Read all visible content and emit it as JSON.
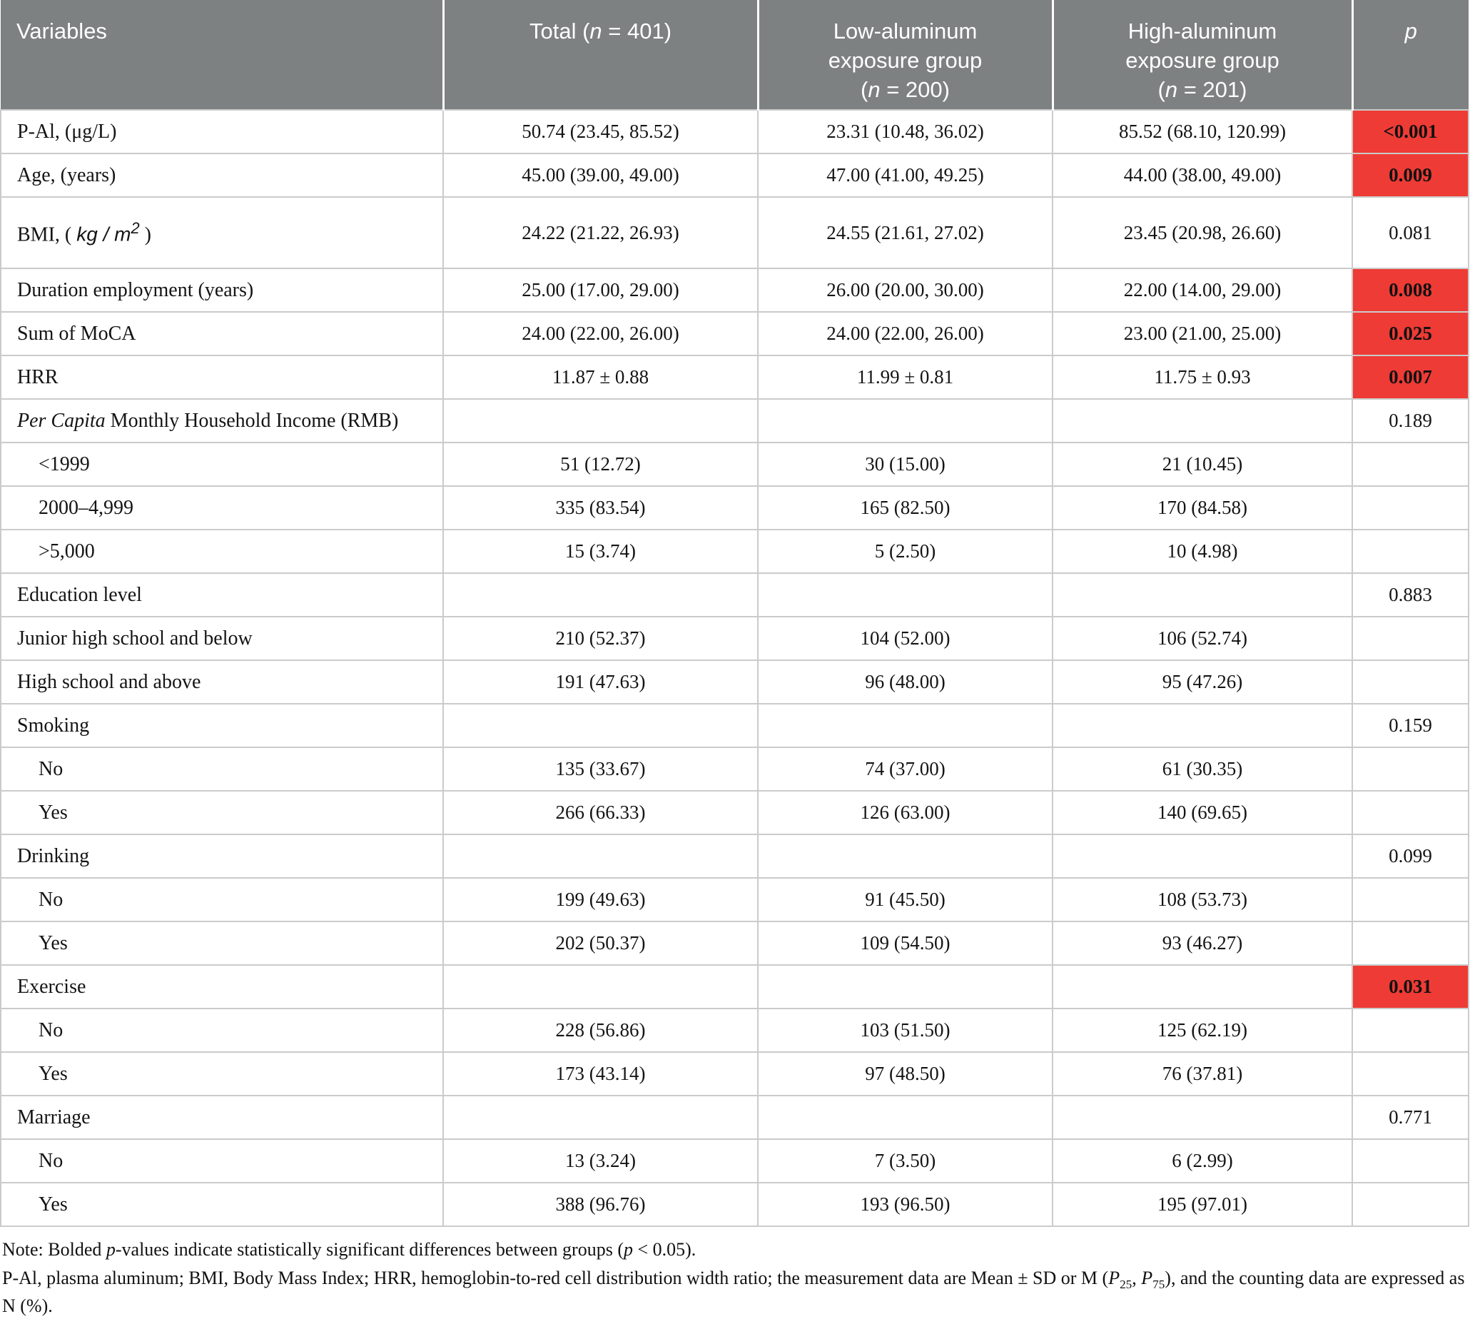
{
  "colors": {
    "header_bg": "#7e8181",
    "significant_bg": "#ee3b35",
    "grid_border": "#cbcbcb",
    "header_text": "#ffffff",
    "body_text": "#141414"
  },
  "table": {
    "header": {
      "variables": [
        {
          "t": "Variables"
        }
      ],
      "total": [
        {
          "t": "Total ("
        },
        {
          "t": "n",
          "i": true
        },
        {
          "t": " = 401)"
        }
      ],
      "low": [
        {
          "t": "Low-aluminum\nexposure group\n("
        },
        {
          "t": "n",
          "i": true
        },
        {
          "t": " = 200)"
        }
      ],
      "high": [
        {
          "t": "High-aluminum\nexposure group\n("
        },
        {
          "t": "n",
          "i": true
        },
        {
          "t": " = 201)"
        }
      ],
      "p": [
        {
          "t": "p",
          "i": true
        }
      ]
    },
    "rows": [
      {
        "label": "P-Al, (μg/L)",
        "indent": false,
        "cells": [
          "50.74 (23.45, 85.52)",
          "23.31 (10.48, 36.02)",
          "85.52 (68.10, 120.99)"
        ],
        "p": "<0.001",
        "sig": true
      },
      {
        "label": "Age, (years)",
        "indent": false,
        "cells": [
          "45.00 (39.00, 49.00)",
          "47.00 (41.00, 49.25)",
          "44.00 (38.00, 49.00)"
        ],
        "p": "0.009",
        "sig": true
      },
      {
        "label": [
          {
            "t": "BMI, ( "
          },
          {
            "t": "kg / m",
            "f": true,
            "i": true
          },
          {
            "t": "2",
            "f": true,
            "i": true,
            "sup": true
          },
          {
            "t": " )"
          }
        ],
        "indent": false,
        "tall": true,
        "cells": [
          "24.22 (21.22, 26.93)",
          "24.55 (21.61, 27.02)",
          "23.45 (20.98, 26.60)"
        ],
        "p": "0.081",
        "sig": false
      },
      {
        "label": "Duration employment (years)",
        "indent": false,
        "cells": [
          "25.00 (17.00, 29.00)",
          "26.00 (20.00, 30.00)",
          "22.00 (14.00, 29.00)"
        ],
        "p": "0.008",
        "sig": true
      },
      {
        "label": "Sum of MoCA",
        "indent": false,
        "cells": [
          "24.00 (22.00, 26.00)",
          "24.00 (22.00, 26.00)",
          "23.00 (21.00, 25.00)"
        ],
        "p": "0.025",
        "sig": true
      },
      {
        "label": "HRR",
        "indent": false,
        "cells": [
          "11.87 ± 0.88",
          "11.99 ± 0.81",
          "11.75 ± 0.93"
        ],
        "p": "0.007",
        "sig": true
      },
      {
        "label": [
          {
            "t": "Per Capita",
            "i": true
          },
          {
            "t": " Monthly Household Income (RMB)"
          }
        ],
        "indent": false,
        "cells": [
          "",
          "",
          ""
        ],
        "p": "0.189",
        "sig": false
      },
      {
        "label": "<1999",
        "indent": true,
        "cells": [
          "51 (12.72)",
          "30 (15.00)",
          "21 (10.45)"
        ],
        "p": "",
        "sig": false
      },
      {
        "label": "2000–4,999",
        "indent": true,
        "cells": [
          "335 (83.54)",
          "165 (82.50)",
          "170 (84.58)"
        ],
        "p": "",
        "sig": false
      },
      {
        "label": ">5,000",
        "indent": true,
        "cells": [
          "15 (3.74)",
          "5 (2.50)",
          "10 (4.98)"
        ],
        "p": "",
        "sig": false
      },
      {
        "label": "Education level",
        "indent": false,
        "cells": [
          "",
          "",
          ""
        ],
        "p": "0.883",
        "sig": false
      },
      {
        "label": "Junior high school and below",
        "indent": false,
        "cells": [
          "210 (52.37)",
          "104 (52.00)",
          "106 (52.74)"
        ],
        "p": "",
        "sig": false
      },
      {
        "label": "High school and above",
        "indent": false,
        "cells": [
          "191 (47.63)",
          "96 (48.00)",
          "95 (47.26)"
        ],
        "p": "",
        "sig": false
      },
      {
        "label": "Smoking",
        "indent": false,
        "cells": [
          "",
          "",
          ""
        ],
        "p": "0.159",
        "sig": false
      },
      {
        "label": "No",
        "indent": true,
        "cells": [
          "135 (33.67)",
          "74 (37.00)",
          "61 (30.35)"
        ],
        "p": "",
        "sig": false
      },
      {
        "label": "Yes",
        "indent": true,
        "cells": [
          "266 (66.33)",
          "126 (63.00)",
          "140 (69.65)"
        ],
        "p": "",
        "sig": false
      },
      {
        "label": "Drinking",
        "indent": false,
        "cells": [
          "",
          "",
          ""
        ],
        "p": "0.099",
        "sig": false
      },
      {
        "label": "No",
        "indent": true,
        "cells": [
          "199 (49.63)",
          "91 (45.50)",
          "108 (53.73)"
        ],
        "p": "",
        "sig": false
      },
      {
        "label": "Yes",
        "indent": true,
        "cells": [
          "202 (50.37)",
          "109 (54.50)",
          "93 (46.27)"
        ],
        "p": "",
        "sig": false
      },
      {
        "label": "Exercise",
        "indent": false,
        "cells": [
          "",
          "",
          ""
        ],
        "p": "0.031",
        "sig": true
      },
      {
        "label": "No",
        "indent": true,
        "cells": [
          "228 (56.86)",
          "103 (51.50)",
          "125 (62.19)"
        ],
        "p": "",
        "sig": false
      },
      {
        "label": "Yes",
        "indent": true,
        "cells": [
          "173 (43.14)",
          "97 (48.50)",
          "76 (37.81)"
        ],
        "p": "",
        "sig": false
      },
      {
        "label": "Marriage",
        "indent": false,
        "cells": [
          "",
          "",
          ""
        ],
        "p": "0.771",
        "sig": false
      },
      {
        "label": "No",
        "indent": true,
        "cells": [
          "13 (3.24)",
          "7 (3.50)",
          "6 (2.99)"
        ],
        "p": "",
        "sig": false
      },
      {
        "label": "Yes",
        "indent": true,
        "cells": [
          "388 (96.76)",
          "193 (96.50)",
          "195 (97.01)"
        ],
        "p": "",
        "sig": false
      }
    ],
    "notes": {
      "note1": [
        {
          "t": "Note: Bolded "
        },
        {
          "t": "p",
          "i": true
        },
        {
          "t": "-values indicate statistically significant differences between groups ("
        },
        {
          "t": "p",
          "i": true
        },
        {
          "t": " < 0.05)."
        }
      ],
      "note2": [
        {
          "t": "P-Al, plasma aluminum; BMI, Body Mass Index; HRR, hemoglobin-to-red cell distribution width ratio; the measurement data are Mean ± SD or M ("
        },
        {
          "t": "P",
          "i": true
        },
        {
          "t": "25",
          "sub": true
        },
        {
          "t": ", "
        },
        {
          "t": "P",
          "i": true
        },
        {
          "t": "75",
          "sub": true
        },
        {
          "t": "), and the counting data are expressed as N (%)."
        }
      ]
    }
  }
}
